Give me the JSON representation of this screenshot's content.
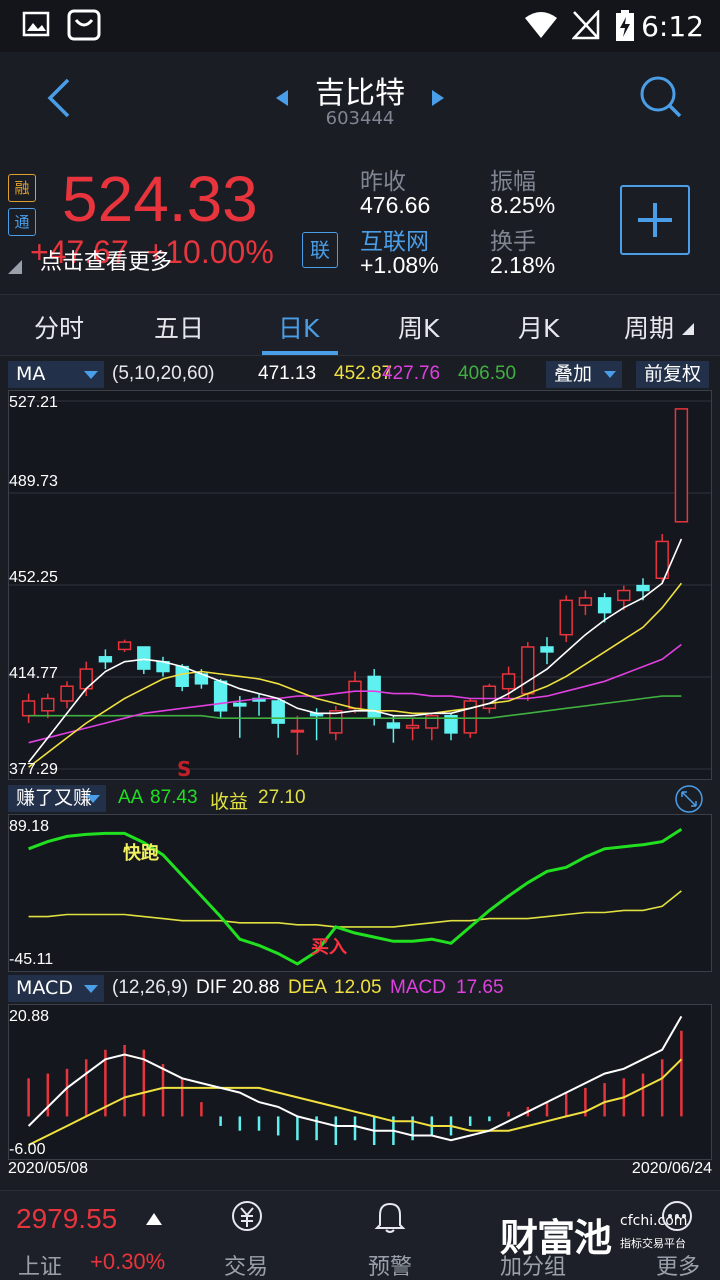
{
  "status": {
    "time": "6:12"
  },
  "nav": {
    "title": "吉比特",
    "code": "603444"
  },
  "quote": {
    "tag_rong": "融",
    "tag_tong": "通",
    "price": "524.33",
    "change": "+47.67",
    "change_pct": "+10.00%",
    "hint": "点击查看更多",
    "lian_label": "联",
    "prev_close_label": "昨收",
    "prev_close": "476.66",
    "amplitude_label": "振幅",
    "amplitude": "8.25%",
    "sector_label": "互联网",
    "sector_change": "+1.08%",
    "turnover_label": "换手",
    "turnover": "2.18%"
  },
  "tabs": [
    "分时",
    "五日",
    "日K",
    "周K",
    "月K",
    "周期"
  ],
  "ma_bar": {
    "selector": "MA",
    "params": "(5,10,20,60)",
    "ma5": "471.13",
    "ma10": "452.87",
    "ma20": "427.76",
    "ma60": "406.50",
    "overlay_label": "叠加",
    "adjust_label": "前复权"
  },
  "kline_axis": [
    "527.21",
    "489.73",
    "452.25",
    "414.77",
    "377.29"
  ],
  "sell_marker": "S",
  "aa_bar": {
    "selector": "赚了又赚",
    "aa_label": "AA",
    "aa_value": "87.43",
    "profit_label": "收益",
    "profit_value": "27.10"
  },
  "aa_axis": {
    "top": "89.18",
    "bottom": "-45.11"
  },
  "aa_markers": {
    "run": "快跑",
    "buy": "买入"
  },
  "macd_bar": {
    "selector": "MACD",
    "params": "(12,26,9)",
    "dif_label": "DIF",
    "dif_value": "20.88",
    "dea_label": "DEA",
    "dea_value": "12.05",
    "macd_label": "MACD",
    "macd_value": "17.65"
  },
  "macd_axis": {
    "top": "20.88",
    "bottom": "-6.00"
  },
  "dates": {
    "start": "2020/05/08",
    "end": "2020/06/24"
  },
  "bottom": {
    "index_price": "2979.55",
    "index_name": "上证",
    "index_change": "+0.30%",
    "nav_trade": "交易",
    "nav_alert": "预警",
    "nav_add": "加分组",
    "nav_more": "更多",
    "brand": "财富池",
    "brand_domain": "cfchi.com",
    "brand_slogan": "指标交易平台"
  },
  "colors": {
    "up": "#e8343c",
    "down": "#5ff0f0",
    "accent": "#4a9ee8",
    "ma5": "#ffffff",
    "ma10": "#f0e040",
    "ma20": "#e040e0",
    "ma60": "#40b040",
    "aa_line": "#20e020",
    "profit_line": "#e0e040"
  },
  "chart_data": {
    "type": "candlestick",
    "x_start": "2020/05/08",
    "x_end": "2020/06/24",
    "ylim": [
      377.29,
      527.21
    ],
    "candles": [
      {
        "o": 399,
        "c": 405,
        "h": 408,
        "l": 396
      },
      {
        "o": 401,
        "c": 406,
        "h": 408,
        "l": 398
      },
      {
        "o": 405,
        "c": 411,
        "h": 413,
        "l": 402
      },
      {
        "o": 410,
        "c": 418,
        "h": 421,
        "l": 407
      },
      {
        "o": 423,
        "c": 421,
        "h": 426,
        "l": 418
      },
      {
        "o": 426,
        "c": 429,
        "h": 430,
        "l": 425
      },
      {
        "o": 427,
        "c": 418,
        "h": 427,
        "l": 416
      },
      {
        "o": 421,
        "c": 417,
        "h": 423,
        "l": 415
      },
      {
        "o": 419,
        "c": 411,
        "h": 420,
        "l": 409
      },
      {
        "o": 416,
        "c": 412,
        "h": 418,
        "l": 410
      },
      {
        "o": 413,
        "c": 401,
        "h": 414,
        "l": 398
      },
      {
        "o": 404,
        "c": 403,
        "h": 407,
        "l": 390
      },
      {
        "o": 406,
        "c": 405,
        "h": 408,
        "l": 399
      },
      {
        "o": 405,
        "c": 396,
        "h": 406,
        "l": 390
      },
      {
        "o": 393,
        "c": 393,
        "h": 399,
        "l": 383
      },
      {
        "o": 400,
        "c": 399,
        "h": 402,
        "l": 389
      },
      {
        "o": 392,
        "c": 401,
        "h": 403,
        "l": 389
      },
      {
        "o": 402,
        "c": 413,
        "h": 417,
        "l": 400
      },
      {
        "o": 415,
        "c": 398,
        "h": 418,
        "l": 395
      },
      {
        "o": 396,
        "c": 394,
        "h": 399,
        "l": 388
      },
      {
        "o": 394,
        "c": 395,
        "h": 398,
        "l": 389
      },
      {
        "o": 394,
        "c": 399,
        "h": 400,
        "l": 389
      },
      {
        "o": 399,
        "c": 392,
        "h": 400,
        "l": 389
      },
      {
        "o": 392,
        "c": 405,
        "h": 406,
        "l": 390
      },
      {
        "o": 402,
        "c": 411,
        "h": 412,
        "l": 400
      },
      {
        "o": 410,
        "c": 416,
        "h": 419,
        "l": 406
      },
      {
        "o": 408,
        "c": 427,
        "h": 429,
        "l": 405
      },
      {
        "o": 427,
        "c": 425,
        "h": 431,
        "l": 420
      },
      {
        "o": 432,
        "c": 446,
        "h": 448,
        "l": 429
      },
      {
        "o": 444,
        "c": 447,
        "h": 450,
        "l": 440
      },
      {
        "o": 447,
        "c": 441,
        "h": 449,
        "l": 437
      },
      {
        "o": 446,
        "c": 450,
        "h": 452,
        "l": 442
      },
      {
        "o": 452,
        "c": 450,
        "h": 455,
        "l": 446
      },
      {
        "o": 455,
        "c": 470,
        "h": 473,
        "l": 453
      },
      {
        "o": 478,
        "c": 524,
        "h": 524,
        "l": 478
      }
    ],
    "ma5": [
      380,
      390,
      400,
      410,
      417,
      421,
      422,
      421,
      419,
      416,
      413,
      410,
      408,
      406,
      402,
      400,
      400,
      401,
      401,
      399,
      399,
      400,
      400,
      402,
      404,
      408,
      413,
      418,
      425,
      432,
      438,
      443,
      447,
      453,
      471
    ],
    "ma10": [
      378,
      384,
      390,
      396,
      401,
      406,
      410,
      414,
      416,
      417,
      416,
      415,
      414,
      412,
      409,
      406,
      404,
      402,
      401,
      401,
      400,
      400,
      401,
      402,
      404,
      405,
      408,
      411,
      415,
      420,
      425,
      430,
      435,
      443,
      453
    ],
    "ma20": [
      388,
      390,
      392,
      394,
      396,
      398,
      400,
      401,
      402,
      403,
      404,
      405,
      406,
      406,
      407,
      407,
      408,
      409,
      409,
      408,
      408,
      407,
      407,
      406,
      406,
      406,
      406,
      407,
      409,
      411,
      413,
      416,
      419,
      422,
      428
    ],
    "ma60": [
      399,
      399,
      399,
      399,
      399,
      399,
      399,
      399,
      399,
      399,
      398,
      398,
      398,
      398,
      398,
      398,
      398,
      398,
      398,
      398,
      398,
      398,
      398,
      398,
      398,
      399,
      400,
      401,
      402,
      403,
      404,
      405,
      406,
      407,
      407
    ],
    "aa": [
      68,
      75,
      80,
      82,
      83,
      83,
      74,
      62,
      42,
      22,
      2,
      -20,
      -26,
      -34,
      -44,
      -32,
      -8,
      -14,
      -18,
      -22,
      -22,
      -20,
      -24,
      -8,
      8,
      22,
      35,
      46,
      50,
      60,
      68,
      70,
      72,
      75,
      87
    ],
    "profit": [
      2,
      2,
      4,
      4,
      4,
      4,
      2,
      0,
      -2,
      -2,
      -2,
      -4,
      -4,
      -4,
      -6,
      -6,
      -8,
      -8,
      -8,
      -8,
      -6,
      -4,
      -2,
      -2,
      0,
      0,
      0,
      2,
      4,
      6,
      6,
      8,
      8,
      12,
      27
    ],
    "dif": [
      -2,
      2,
      6,
      9,
      12,
      13,
      12,
      10,
      8,
      7,
      6,
      5,
      3,
      2,
      0,
      -1,
      -2,
      -2,
      -3,
      -3,
      -4,
      -4,
      -5,
      -4,
      -3,
      -1,
      1,
      3,
      5,
      7,
      9,
      10,
      12,
      14,
      21
    ],
    "dea": [
      -6,
      -4,
      -2,
      0,
      2,
      4,
      5,
      6,
      6,
      6,
      6,
      6,
      6,
      5,
      4,
      3,
      2,
      1,
      0,
      -1,
      -1,
      -2,
      -2,
      -3,
      -3,
      -3,
      -2,
      -1,
      0,
      1,
      3,
      4,
      6,
      8,
      12
    ],
    "macd": [
      8,
      9,
      10,
      12,
      14,
      15,
      14,
      11,
      8,
      3,
      -2,
      -3,
      -3,
      -4,
      -5,
      -5,
      -6,
      -5,
      -6,
      -6,
      -5,
      -4,
      -4,
      -2,
      -1,
      1,
      2,
      3,
      5,
      6,
      7,
      8,
      9,
      12,
      18
    ],
    "aa_ylim": [
      -45.11,
      89.18
    ],
    "macd_ylim": [
      -6.0,
      20.88
    ]
  }
}
